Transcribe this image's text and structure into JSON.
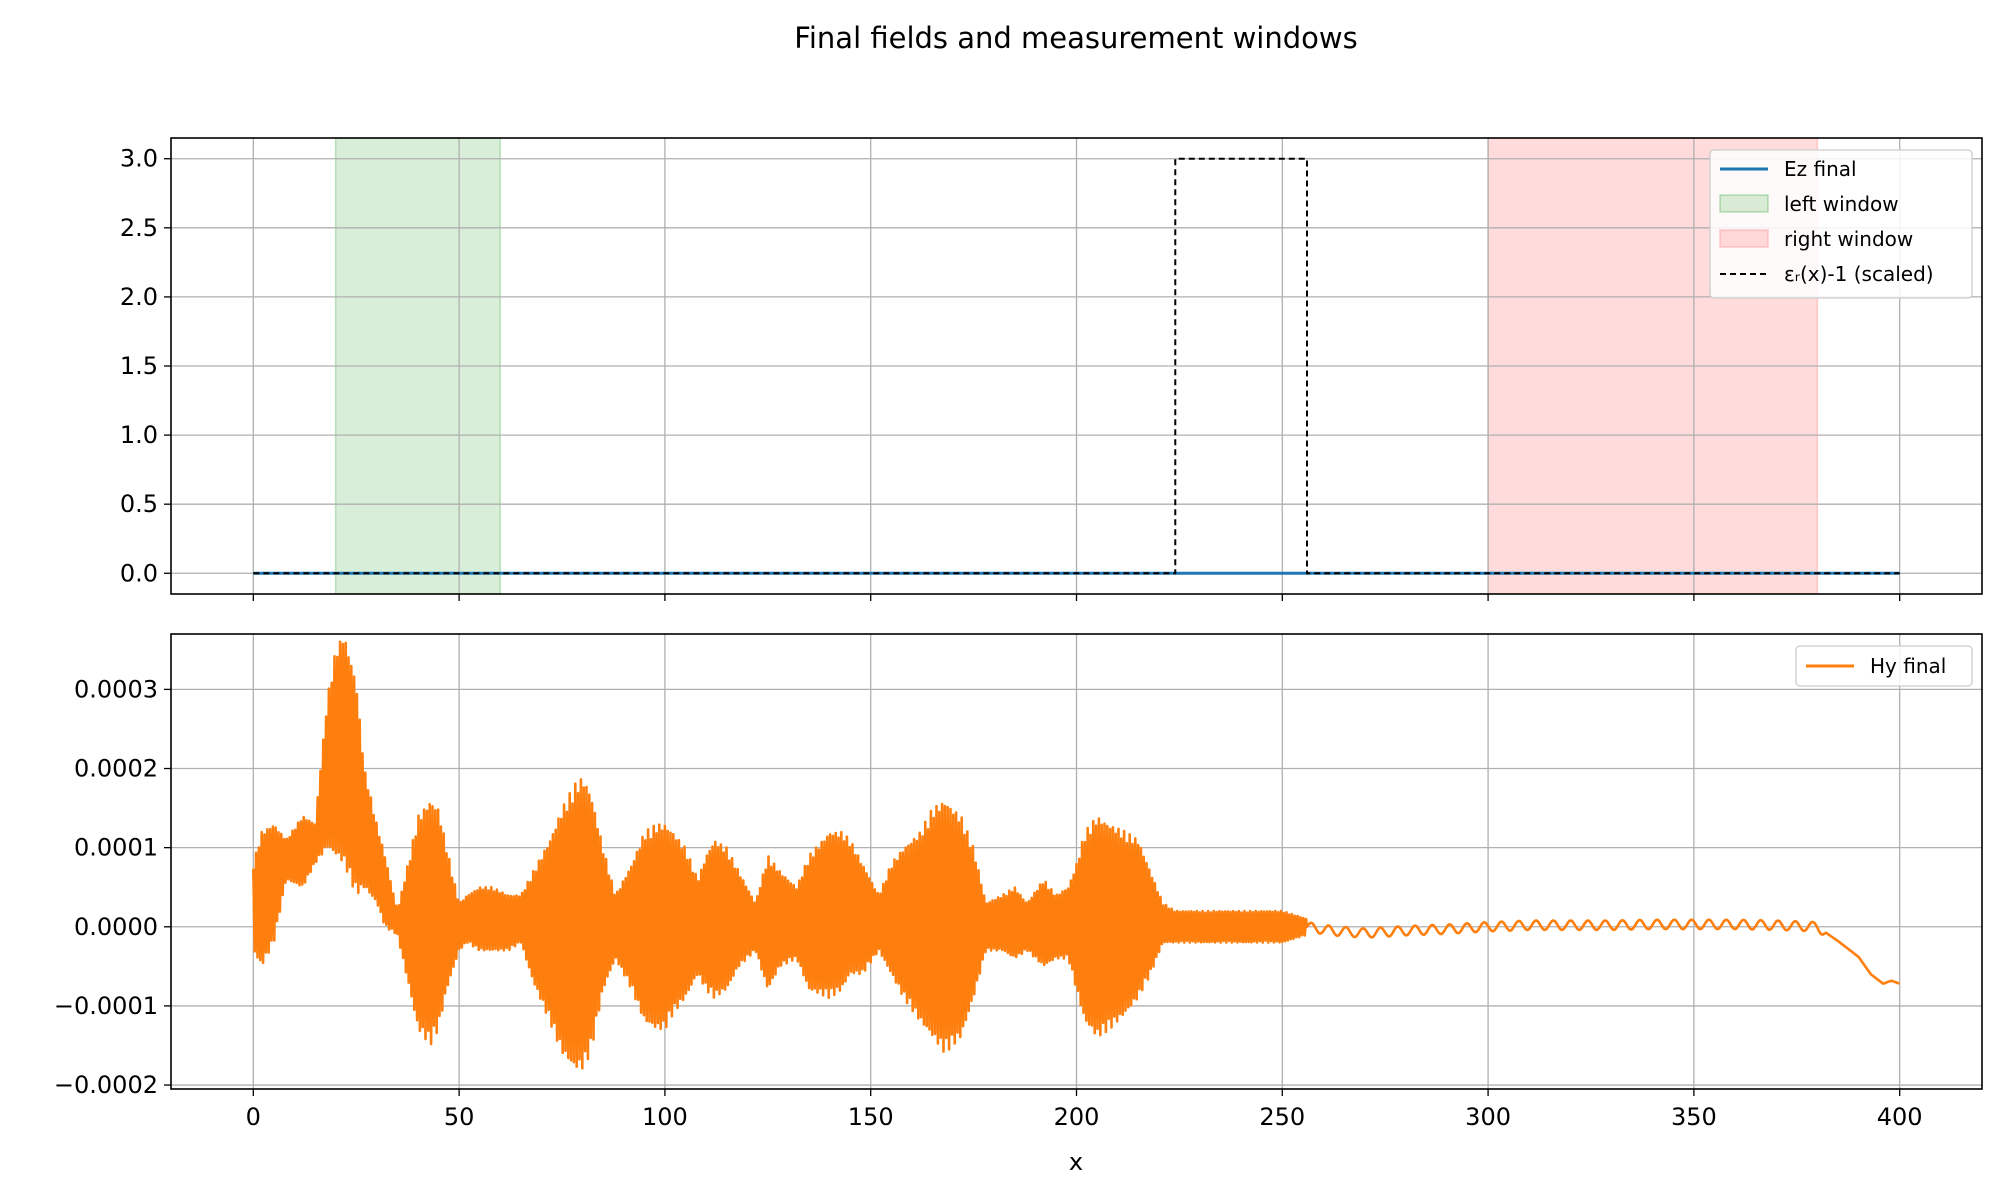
{
  "figure": {
    "title": "Final fields and measurement windows"
  },
  "colors": {
    "ez": "#1f77b4",
    "hy": "#ff7f0e",
    "left_window": "#2ca02c",
    "right_window": "#ff9999",
    "eps": "#000000",
    "grid": "#b0b0b0"
  },
  "chart_data": [
    {
      "type": "line",
      "name": "top-panel",
      "xlim": [
        -20,
        420
      ],
      "ylim": [
        -0.15,
        3.15
      ],
      "x_ticks": [
        0,
        50,
        100,
        150,
        200,
        250,
        300,
        350,
        400
      ],
      "y_ticks": [
        0.0,
        0.5,
        1.0,
        1.5,
        2.0,
        2.5,
        3.0
      ],
      "y_tick_labels": [
        "0.0",
        "0.5",
        "1.0",
        "1.5",
        "2.0",
        "2.5",
        "3.0"
      ],
      "grid": true,
      "legend_loc": "upper right",
      "legend": [
        "Ez final",
        "left window",
        "right window",
        "εᵣ(x)-1 (scaled)"
      ],
      "spans": [
        {
          "name": "left window",
          "x0": 20,
          "x1": 60
        },
        {
          "name": "right window",
          "x0": 300,
          "x1": 380
        }
      ],
      "series": [
        {
          "name": "Ez final",
          "x": [
            0,
            400
          ],
          "y": [
            0,
            0
          ]
        },
        {
          "name": "εᵣ(x)-1 (scaled)",
          "x": [
            0,
            224,
            224,
            256,
            256,
            400
          ],
          "y": [
            0,
            0,
            3,
            3,
            0,
            0
          ]
        }
      ]
    },
    {
      "type": "line",
      "name": "bottom-panel",
      "xlim": [
        -20,
        420
      ],
      "ylim": [
        -0.000205,
        0.00037
      ],
      "x_ticks": [
        0,
        50,
        100,
        150,
        200,
        250,
        300,
        350,
        400
      ],
      "x_tick_labels": [
        "0",
        "50",
        "100",
        "150",
        "200",
        "250",
        "300",
        "350",
        "400"
      ],
      "y_ticks": [
        -0.0002,
        -0.0001,
        0.0,
        0.0001,
        0.0002,
        0.0003
      ],
      "y_tick_labels": [
        "−0.0002",
        "−0.0001",
        "0.0000",
        "0.0001",
        "0.0002",
        "0.0003"
      ],
      "xlabel": "x",
      "grid": true,
      "legend_loc": "upper right",
      "legend": [
        "Hy final"
      ],
      "series": [
        {
          "name": "Hy final",
          "envelope": {
            "x": [
              0,
              2,
              5,
              8,
              12,
              15,
              18,
              20,
              22,
              25,
              27,
              30,
              32,
              35,
              38,
              40,
              43,
              45,
              47,
              50,
              52,
              55,
              58,
              62,
              65,
              68,
              72,
              75,
              78,
              80,
              82,
              85,
              88,
              92,
              95,
              98,
              100,
              102,
              105,
              108,
              110,
              112,
              115,
              118,
              122,
              125,
              128,
              132,
              135,
              140,
              143,
              145,
              148,
              152,
              155,
              158,
              162,
              165,
              168,
              172,
              175,
              178,
              182,
              185,
              188,
              192,
              195,
              198,
              200,
              202,
              205,
              208,
              212,
              215,
              218,
              221,
              224,
              230,
              240,
              250,
              256
            ],
            "upper": [
              8e-05,
              0.00012,
              0.00013,
              0.00011,
              0.00014,
              0.00013,
              0.00029,
              0.00035,
              0.00037,
              0.00031,
              0.0002,
              0.00013,
              9e-05,
              2e-05,
              9e-05,
              0.00014,
              0.00016,
              0.00015,
              0.0001,
              3e-05,
              4e-05,
              5e-05,
              5e-05,
              4e-05,
              4e-05,
              7e-05,
              0.00011,
              0.00015,
              0.00018,
              0.00019,
              0.00017,
              0.0001,
              4e-05,
              8e-05,
              0.00012,
              0.00013,
              0.00013,
              0.00012,
              0.0001,
              6e-05,
              9e-05,
              0.00011,
              0.0001,
              7e-05,
              3e-05,
              9e-05,
              7e-05,
              5e-05,
              9e-05,
              0.00012,
              0.00012,
              0.00011,
              8e-05,
              4e-05,
              8e-05,
              0.0001,
              0.00012,
              0.00015,
              0.00016,
              0.00014,
              0.0001,
              3e-05,
              4e-05,
              5e-05,
              3e-05,
              6e-05,
              4e-05,
              5e-05,
              8e-05,
              0.00012,
              0.00014,
              0.00013,
              0.00012,
              0.00011,
              7e-05,
              3e-05,
              2e-05,
              2e-05,
              2e-05,
              2e-05,
              1e-05
            ],
            "lower": [
              -3e-05,
              -5e-05,
              -2e-05,
              6e-05,
              5e-05,
              8e-05,
              0.0001,
              9e-05,
              8e-05,
              4e-05,
              5e-05,
              3e-05,
              0.0,
              -1e-05,
              -8e-05,
              -0.00013,
              -0.00015,
              -0.00013,
              -8e-05,
              -3e-05,
              -2e-05,
              -3e-05,
              -3e-05,
              -3e-05,
              -2e-05,
              -7e-05,
              -0.00012,
              -0.00016,
              -0.00018,
              -0.00018,
              -0.00016,
              -8e-05,
              -4e-05,
              -8e-05,
              -0.00012,
              -0.00013,
              -0.00013,
              -0.00011,
              -9e-05,
              -6e-05,
              -8e-05,
              -9e-05,
              -8e-05,
              -5e-05,
              -3e-05,
              -8e-05,
              -5e-05,
              -4e-05,
              -8e-05,
              -9e-05,
              -8e-05,
              -6e-05,
              -6e-05,
              -3e-05,
              -6e-05,
              -9e-05,
              -0.00012,
              -0.00014,
              -0.00016,
              -0.00014,
              -9e-05,
              -3e-05,
              -3e-05,
              -4e-05,
              -3e-05,
              -5e-05,
              -4e-05,
              -4e-05,
              -8e-05,
              -0.00012,
              -0.00014,
              -0.00013,
              -0.00011,
              -9e-05,
              -6e-05,
              -2e-05,
              -2e-05,
              -2e-05,
              -2e-05,
              -2e-05,
              -1e-05
            ]
          },
          "tail": {
            "x": [
              256,
              262,
              270,
              280,
              290,
              300,
              310,
              320,
              330,
              340,
              350,
              360,
              370,
              380,
              385,
              390,
              393,
              396,
              398,
              400
            ],
            "y": [
              0.0,
              -5e-06,
              -8e-06,
              -5e-06,
              -3e-06,
              0.0,
              2e-06,
              2e-06,
              2e-06,
              3e-06,
              3e-06,
              3e-06,
              2e-06,
              0.0,
              -1.8e-05,
              -3.8e-05,
              -6e-05,
              -7.2e-05,
              -6.8e-05,
              -7.2e-05
            ],
            "ripple_amplitude": 6e-06
          }
        }
      ]
    }
  ]
}
